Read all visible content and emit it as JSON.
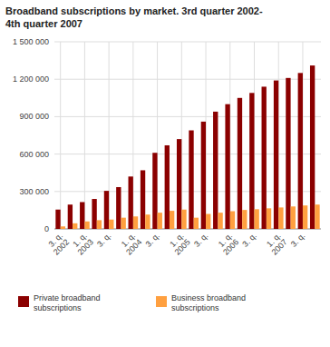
{
  "chart_data": {
    "type": "bar",
    "title": "Broadband subscriptions by market. 3rd quarter 2002-\n4th quarter 2007",
    "categories": [
      "3. q.\n2002",
      null,
      "1. q.\n2003",
      null,
      "3. q.",
      null,
      "1. q.\n2004",
      null,
      "3. q.",
      null,
      "1. q.\n2005",
      null,
      "3. q.",
      null,
      "1. q.\n2006",
      null,
      "3. q.",
      null,
      "1. q.\n2007",
      null,
      "3. q.",
      null
    ],
    "series": [
      {
        "name": "Private broadband\nsubscriptions",
        "color": "#8B0000",
        "values": [
          155000,
          195000,
          215000,
          240000,
          305000,
          335000,
          420000,
          470000,
          610000,
          670000,
          720000,
          790000,
          860000,
          940000,
          1000000,
          1050000,
          1090000,
          1140000,
          1190000,
          1210000,
          1250000,
          1310000
        ]
      },
      {
        "name": "Business broadband\nsubscriptions",
        "color": "#FFA040",
        "values": [
          20000,
          45000,
          60000,
          70000,
          75000,
          90000,
          100000,
          115000,
          130000,
          145000,
          155000,
          90000,
          120000,
          130000,
          142000,
          152000,
          158000,
          165000,
          172000,
          180000,
          188000,
          195000
        ]
      }
    ],
    "ylim": [
      0,
      1500000
    ],
    "yticks": [
      0,
      {
        "value": 300000,
        "label": "300 000"
      },
      {
        "value": 600000,
        "label": "600 000"
      },
      {
        "value": 900000,
        "label": "900 000"
      },
      {
        "value": 1200000,
        "label": "1 200 000"
      },
      {
        "value": 1500000,
        "label": "1 500 000"
      }
    ],
    "grid": true,
    "legend": "bottom"
  }
}
